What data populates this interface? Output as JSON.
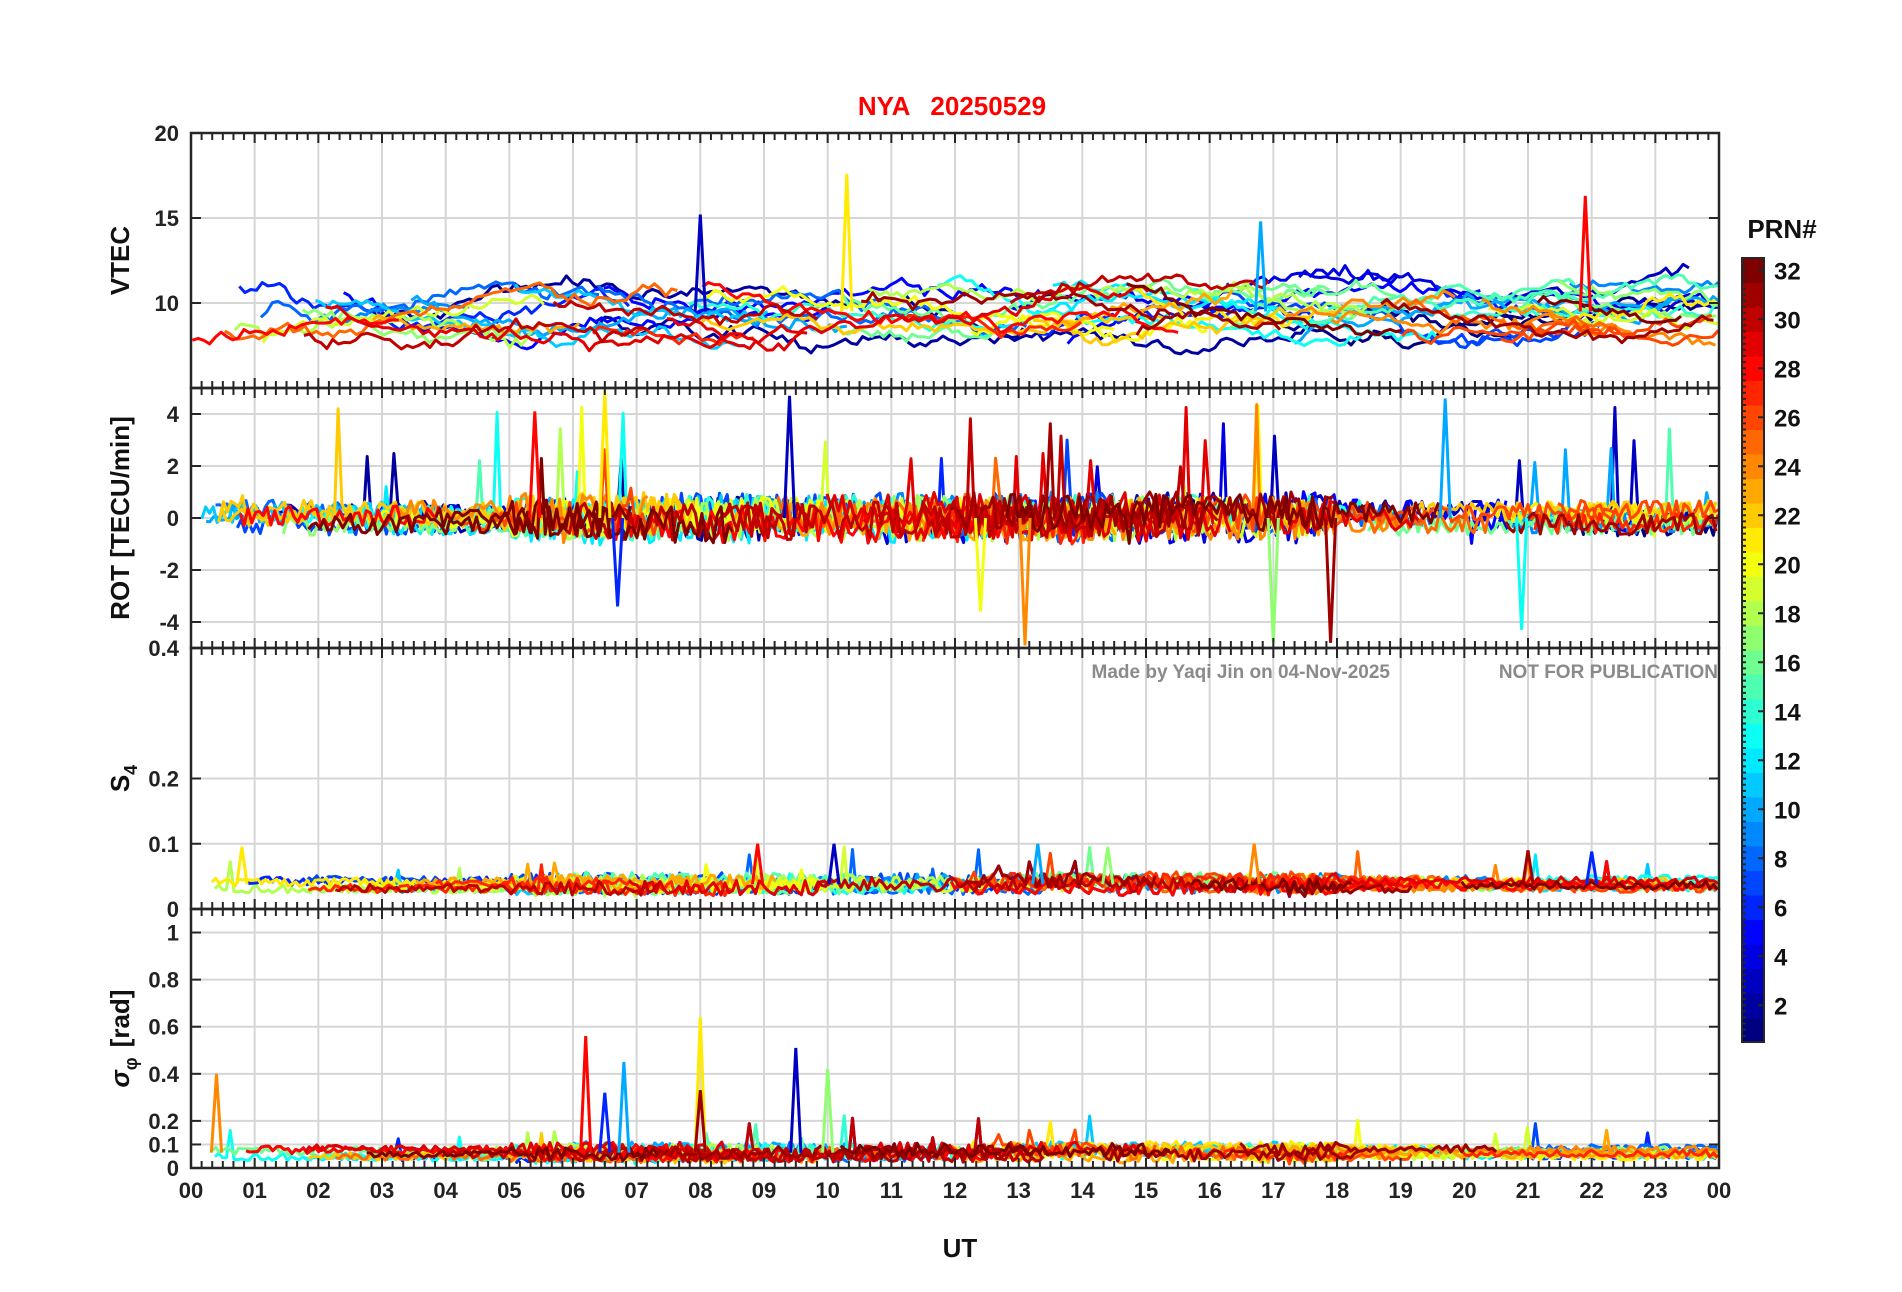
{
  "chart_data": {
    "type": "line",
    "title_station": "NYA",
    "title_date": "20250529",
    "xlabel": "UT",
    "xticks": [
      "00",
      "01",
      "02",
      "03",
      "04",
      "05",
      "06",
      "07",
      "08",
      "09",
      "10",
      "11",
      "12",
      "13",
      "14",
      "15",
      "16",
      "17",
      "18",
      "19",
      "20",
      "21",
      "22",
      "23",
      "00"
    ],
    "xlim_hours": [
      0,
      24
    ],
    "watermark_author": "Made by Yaqi Jin on 04-Nov-2025",
    "watermark_notice": "NOT FOR PUBLICATION",
    "grid": true,
    "panels": [
      {
        "id": "vtec",
        "ylabel": "VTEC",
        "ylim": [
          5,
          20
        ],
        "ytick_values": [
          10,
          15,
          20
        ],
        "ytick_labels": [
          "10",
          "15",
          "20"
        ],
        "baseline": 9.5,
        "band": 2.0,
        "noise": 0.35,
        "walk": 0.6,
        "spikes": [
          {
            "t": 10.3,
            "v": 17.6
          },
          {
            "t": 21.9,
            "v": 16.3
          },
          {
            "t": 8.0,
            "v": 15.2
          },
          {
            "t": 16.8,
            "v": 14.8
          }
        ]
      },
      {
        "id": "rot",
        "ylabel": "ROT [TECU/min]",
        "ylim": [
          -5,
          5
        ],
        "ytick_values": [
          -4,
          -2,
          0,
          2,
          4
        ],
        "ytick_labels": [
          "-4",
          "-2",
          "0",
          "2",
          "4"
        ],
        "baseline": 0,
        "band": 0.3,
        "noise": 0.45,
        "walk": 0,
        "spikes": [
          {
            "t": 6.5,
            "v": 4.9
          },
          {
            "t": 5.4,
            "v": 4.1
          },
          {
            "t": 9.4,
            "v": 4.7
          },
          {
            "t": 19.7,
            "v": 4.6
          },
          {
            "t": 17.0,
            "v": -4.8
          },
          {
            "t": 13.1,
            "v": -4.9
          },
          {
            "t": 17.9,
            "v": -4.8
          },
          {
            "t": 6.7,
            "v": -3.4
          },
          {
            "t": 20.9,
            "v": -4.3
          },
          {
            "t": 12.4,
            "v": -3.6
          }
        ]
      },
      {
        "id": "s4",
        "ylabel_main": "S",
        "ylabel_sub": "4",
        "ylim": [
          0,
          0.4
        ],
        "ytick_values": [
          0,
          0.1,
          0.2,
          0.4
        ],
        "ytick_labels": [
          "0",
          "0.1",
          "0.2",
          "0.4"
        ],
        "baseline": 0.038,
        "band": 0.008,
        "noise": 0.007,
        "walk": 0,
        "spikes": [
          {
            "t": 0.8,
            "v": 0.095
          },
          {
            "t": 8.9,
            "v": 0.1
          },
          {
            "t": 10.1,
            "v": 0.1
          },
          {
            "t": 13.3,
            "v": 0.1
          },
          {
            "t": 14.4,
            "v": 0.095
          },
          {
            "t": 16.7,
            "v": 0.1
          },
          {
            "t": 21.0,
            "v": 0.09
          },
          {
            "t": 22.0,
            "v": 0.088
          }
        ]
      },
      {
        "id": "sigphi",
        "ylabel_main": "σ",
        "ylabel_sub": "φ",
        "ylabel_suffix": "[rad]",
        "ylim": [
          0,
          1.1
        ],
        "ytick_values": [
          0,
          0.1,
          0.2,
          0.4,
          0.6,
          0.8,
          1
        ],
        "ytick_labels": [
          "0",
          "0.1",
          "0.2",
          "0.4",
          "0.6",
          "0.8",
          "1"
        ],
        "baseline": 0.065,
        "band": 0.02,
        "noise": 0.018,
        "walk": 0,
        "spikes": [
          {
            "t": 8.0,
            "v": 0.64
          },
          {
            "t": 6.2,
            "v": 0.56
          },
          {
            "t": 9.5,
            "v": 0.51
          },
          {
            "t": 6.8,
            "v": 0.45
          },
          {
            "t": 10.0,
            "v": 0.42
          },
          {
            "t": 0.4,
            "v": 0.4
          },
          {
            "t": 8.0,
            "v": 0.33
          },
          {
            "t": 6.5,
            "v": 0.32
          }
        ]
      }
    ],
    "series_count": 32,
    "colorbar": {
      "label": "PRN#",
      "range": [
        1,
        32
      ],
      "tick_labels": [
        "2",
        "4",
        "6",
        "8",
        "10",
        "12",
        "14",
        "16",
        "18",
        "20",
        "22",
        "24",
        "26",
        "28",
        "30",
        "32"
      ],
      "colormap": "jet"
    }
  }
}
